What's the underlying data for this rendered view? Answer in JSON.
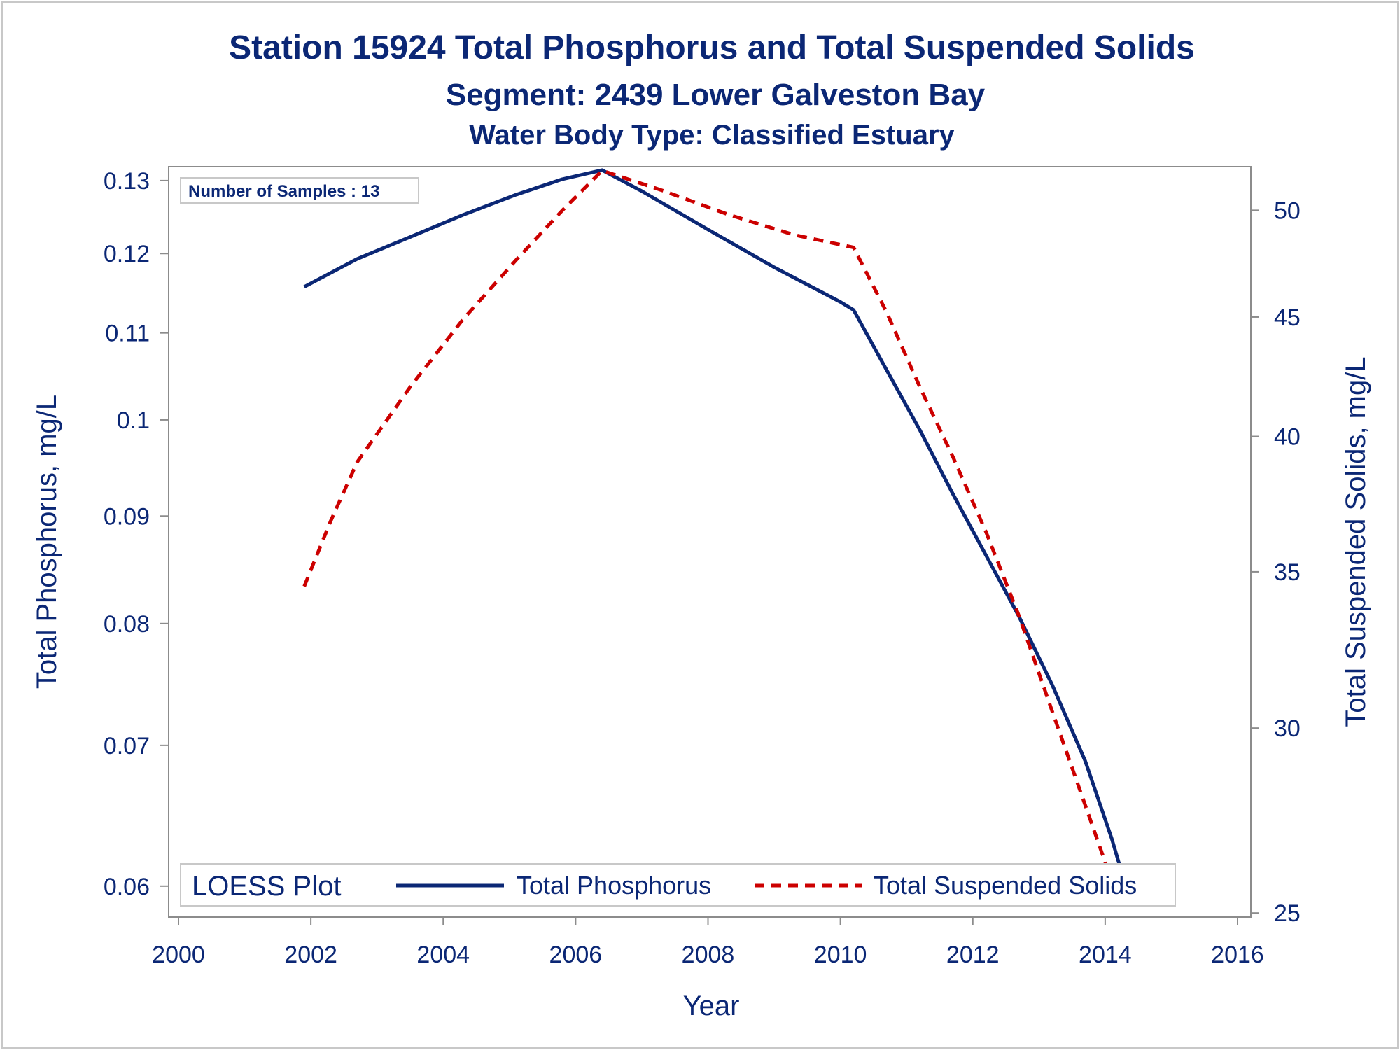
{
  "titles": {
    "line1": "Station 15924  Total Phosphorus and Total Suspended Solids",
    "line2": "Segment: 2439  Lower Galveston Bay",
    "line3": "Water Body Type: Classified Estuary"
  },
  "inset": {
    "text": "Number of Samples : 13"
  },
  "legend": {
    "title": "LOESS Plot",
    "placement": "bottom-inside"
  },
  "colors": {
    "text": "#0b2775",
    "phosphorus": "#0b2775",
    "solids": "#cc0000",
    "frame": "#8c8c8c"
  },
  "chart_data": {
    "type": "line",
    "xlabel": "Year",
    "ylabel": "Total Phosphorus, mg/L",
    "y2label": "Total Suspended Solids, mg/L",
    "xlim": [
      2000,
      2016
    ],
    "x_ticks": [
      2000,
      2002,
      2004,
      2006,
      2008,
      2010,
      2012,
      2014,
      2016
    ],
    "ylim": [
      0.058,
      0.132
    ],
    "y_scale": "log",
    "y_ticks": [
      0.06,
      0.07,
      0.08,
      0.09,
      0.1,
      0.11,
      0.12,
      0.13
    ],
    "y_tick_labels": [
      "0.06",
      "0.07",
      "0.08",
      "0.09",
      "0.1",
      "0.11",
      "0.12",
      "0.13"
    ],
    "y2lim": [
      24.9,
      52.2
    ],
    "y2_scale": "log",
    "y2_ticks": [
      25,
      30,
      35,
      40,
      45,
      50
    ],
    "grid": false,
    "series": [
      {
        "name": "Total Phosphorus",
        "axis": "left",
        "style": "solid",
        "x": [
          2001.9,
          2002.7,
          2003.5,
          2004.3,
          2005.1,
          2005.8,
          2006.4,
          2007.0,
          2008.0,
          2009.0,
          2010.0,
          2010.2,
          2010.7,
          2011.2,
          2011.7,
          2012.2,
          2012.7,
          2013.2,
          2013.7,
          2014.1,
          2014.4
        ],
        "values": [
          0.1157,
          0.1193,
          0.1222,
          0.1252,
          0.128,
          0.1302,
          0.1315,
          0.1285,
          0.1232,
          0.1182,
          0.1138,
          0.1128,
          0.1056,
          0.0989,
          0.0922,
          0.0862,
          0.0806,
          0.0748,
          0.0688,
          0.0632,
          0.0587
        ]
      },
      {
        "name": "Total Suspended Solids",
        "axis": "right",
        "style": "dashed",
        "x": [
          2001.9,
          2002.3,
          2002.7,
          2003.5,
          2004.3,
          2005.1,
          2005.8,
          2006.4,
          2007.3,
          2008.3,
          2009.3,
          2010.2,
          2010.7,
          2011.2,
          2011.7,
          2012.2,
          2012.7,
          2013.2,
          2013.7,
          2014.1,
          2014.3
        ],
        "values": [
          34.5,
          36.8,
          39.0,
          42.0,
          44.9,
          47.6,
          50.0,
          52.0,
          51.0,
          49.8,
          48.8,
          48.2,
          45.2,
          42.0,
          39.2,
          36.4,
          33.5,
          30.5,
          27.8,
          25.8,
          25.2
        ]
      }
    ]
  }
}
